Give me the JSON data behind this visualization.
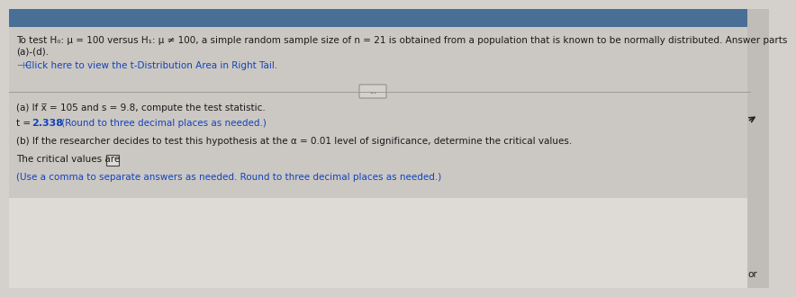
{
  "bg_top_color": "#c8c4c0",
  "bg_bottom_color": "#e8e4e0",
  "bg_color": "#d4d0cc",
  "text_color": "#1a1a1a",
  "blue_color": "#1144bb",
  "dark_blue": "#0033aa",
  "line1": "To test H₀: μ = 100 versus H₁: μ ≠ 100, a simple random sample size of n = 21 is obtained from a population that is known to be normally distributed. Answer parts",
  "line2": "(a)-(d).",
  "link_text": "Click here to view the t-Distribution Area in Right Tail.",
  "part_a": "(a) If x̅ = 105 and s = 9.8, compute the test statistic.",
  "t_label": "t = ",
  "t_value": "2.338",
  "t_note": " (Round to three decimal places as needed.)",
  "part_b": "(b) If the researcher decides to test this hypothesis at the α = 0.01 level of significance, determine the critical values.",
  "critical_label": "The critical values are ",
  "critical_note": "(Use a comma to separate answers as needed. Round to three decimal places as needed.)",
  "dots_text": "...",
  "bottom_right_text": "or",
  "header_bg": "#5b7fa6",
  "separator_color": "#999999"
}
